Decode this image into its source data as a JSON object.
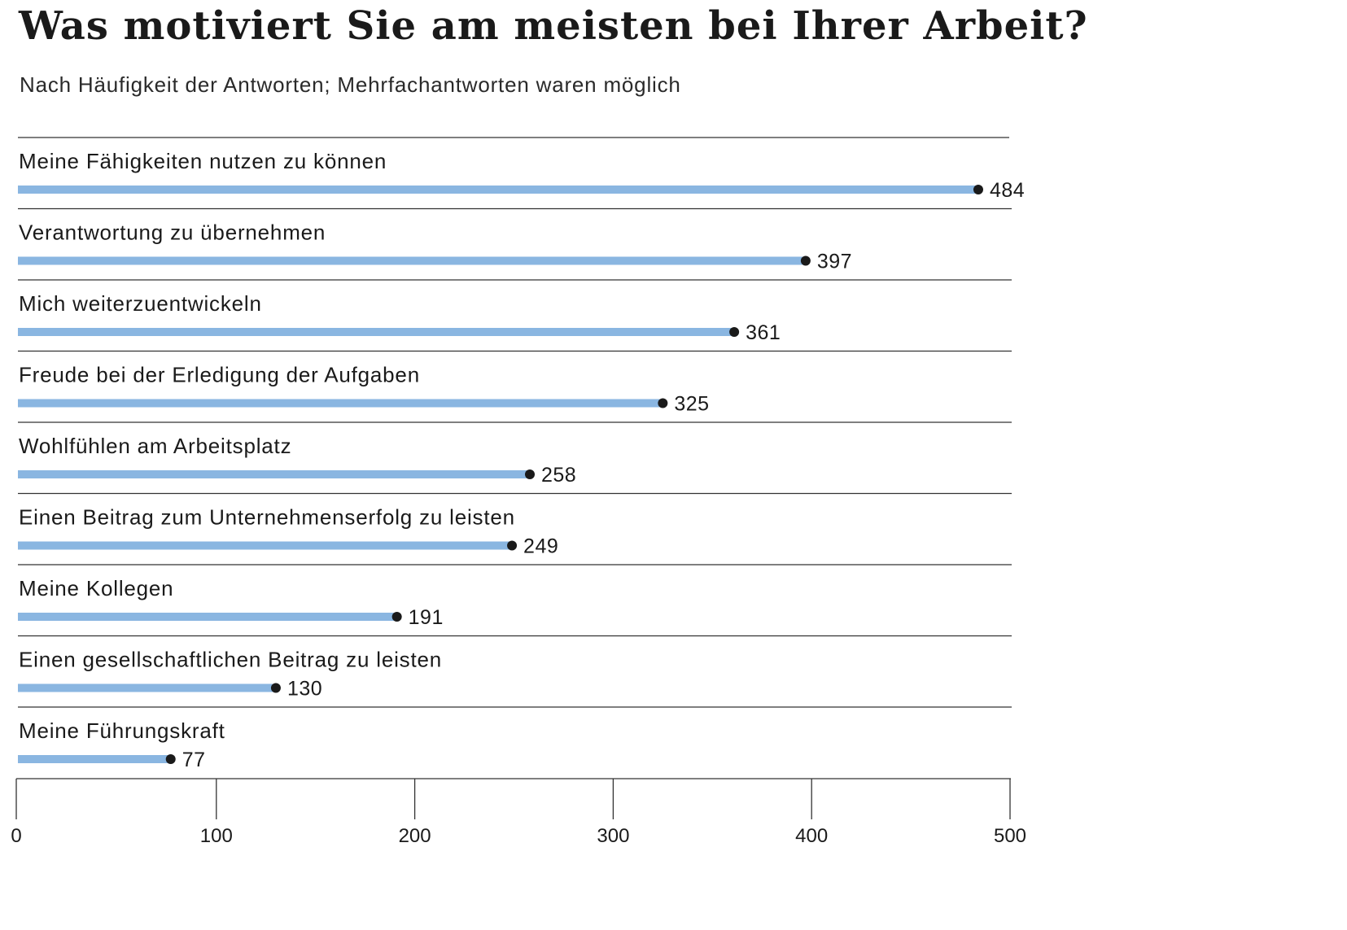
{
  "header": {
    "title": "Was motiviert Sie am meisten bei Ihrer Arbeit?",
    "subtitle": "Nach Häufigkeit der Antworten; Mehrfachantworten waren möglich"
  },
  "colors": {
    "bar": "#8ab6e1",
    "dot": "#1a1a1a",
    "rule": "#333333"
  },
  "chart_data": {
    "type": "bar",
    "orientation": "horizontal",
    "title": "Was motiviert Sie am meisten bei Ihrer Arbeit?",
    "subtitle": "Nach Häufigkeit der Antworten; Mehrfachantworten waren möglich",
    "categories": [
      "Meine Fähigkeiten nutzen zu können",
      "Verantwortung zu übernehmen",
      "Mich weiterzuentwickeln",
      "Freude bei der Erledigung der Aufgaben",
      "Wohlfühlen am Arbeitsplatz",
      "Einen Beitrag zum Unternehmenserfolg zu leisten",
      "Meine Kollegen",
      "Einen gesellschaftlichen Beitrag zu leisten",
      "Meine Führungskraft"
    ],
    "values": [
      484,
      397,
      361,
      325,
      258,
      249,
      191,
      130,
      77
    ],
    "xlim": [
      0,
      500
    ],
    "xticks": [
      0,
      100,
      200,
      300,
      400,
      500
    ],
    "xlabel": "",
    "ylabel": "",
    "grid": false,
    "legend": "none"
  }
}
